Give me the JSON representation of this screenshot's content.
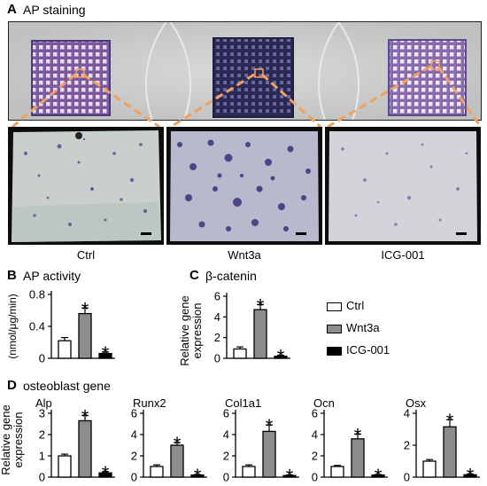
{
  "panels": {
    "A": {
      "letter": "A",
      "title": "AP staining",
      "captions": [
        "Ctrl",
        "Wnt3a",
        "ICG-001"
      ]
    },
    "B": {
      "letter": "B",
      "title": "AP activity",
      "ylabel": "(nmol/μg/min)"
    },
    "C": {
      "letter": "C",
      "title": "β-catenin",
      "ylabel": "Relative gene expression"
    },
    "D": {
      "letter": "D",
      "title": "osteoblast gene",
      "ylabel": "Relative gene expression"
    }
  },
  "legend": {
    "items": [
      {
        "label": "Ctrl",
        "fill": "#ffffff"
      },
      {
        "label": "Wnt3a",
        "fill": "#8c8c8c"
      },
      {
        "label": "ICG-001",
        "fill": "#000000"
      }
    ]
  },
  "colors": {
    "ctrl": "#ffffff",
    "wnt3a": "#8c8c8c",
    "icg": "#000000",
    "connector": "#f0a060",
    "stain": "#4a3a8a"
  },
  "chart_data": [
    {
      "id": "B",
      "type": "bar",
      "categories": [
        "Ctrl",
        "Wnt3a",
        "ICG-001"
      ],
      "values": [
        0.22,
        0.56,
        0.06
      ],
      "errors": [
        0.04,
        0.07,
        0.02
      ],
      "significant": [
        false,
        true,
        true
      ],
      "ylim": [
        0,
        0.8
      ],
      "yticks": [
        "0",
        "0.4",
        "0.8"
      ],
      "ytick_values": [
        0,
        0.4,
        0.8
      ],
      "ylabel": "(nmol/μg/min)",
      "title": "AP activity"
    },
    {
      "id": "C",
      "type": "bar",
      "categories": [
        "Ctrl",
        "Wnt3a",
        "ICG-001"
      ],
      "values": [
        0.9,
        4.7,
        0.2
      ],
      "errors": [
        0.2,
        0.5,
        0.1
      ],
      "significant": [
        false,
        true,
        true
      ],
      "ylim": [
        0,
        6
      ],
      "yticks": [
        "0",
        "2",
        "4",
        "6"
      ],
      "ytick_values": [
        0,
        2,
        4,
        6
      ],
      "ylabel": "Relative gene expression",
      "title": "β-catenin"
    },
    {
      "id": "D-Alp",
      "type": "bar",
      "title": "Alp",
      "categories": [
        "Ctrl",
        "Wnt3a",
        "ICG-001"
      ],
      "values": [
        1.0,
        2.65,
        0.2
      ],
      "errors": [
        0.08,
        0.25,
        0.06
      ],
      "significant": [
        false,
        true,
        true
      ],
      "ylim": [
        0,
        3
      ],
      "yticks": [
        "0",
        "1",
        "2",
        "3"
      ],
      "ytick_values": [
        0,
        1,
        2,
        3
      ]
    },
    {
      "id": "D-Runx2",
      "type": "bar",
      "title": "Runx2",
      "categories": [
        "Ctrl",
        "Wnt3a",
        "ICG-001"
      ],
      "values": [
        1.0,
        3.0,
        0.2
      ],
      "errors": [
        0.15,
        0.25,
        0.05
      ],
      "significant": [
        false,
        true,
        true
      ],
      "ylim": [
        0,
        6
      ],
      "yticks": [
        "0",
        "2",
        "4",
        "6"
      ],
      "ytick_values": [
        0,
        2,
        4,
        6
      ]
    },
    {
      "id": "D-Col1a1",
      "type": "bar",
      "title": "Col1a1",
      "categories": [
        "Ctrl",
        "Wnt3a",
        "ICG-001"
      ],
      "values": [
        1.0,
        4.3,
        0.15
      ],
      "errors": [
        0.15,
        0.6,
        0.05
      ],
      "significant": [
        false,
        true,
        true
      ],
      "ylim": [
        0,
        6
      ],
      "yticks": [
        "0",
        "2",
        "4",
        "6"
      ],
      "ytick_values": [
        0,
        2,
        4,
        6
      ]
    },
    {
      "id": "D-Ocn",
      "type": "bar",
      "title": "Ocn",
      "categories": [
        "Ctrl",
        "Wnt3a",
        "ICG-001"
      ],
      "values": [
        1.0,
        3.6,
        0.2
      ],
      "errors": [
        0.1,
        0.45,
        0.05
      ],
      "significant": [
        false,
        true,
        true
      ],
      "ylim": [
        0,
        6
      ],
      "yticks": [
        "0",
        "2",
        "4",
        "6"
      ],
      "ytick_values": [
        0,
        2,
        4,
        6
      ]
    },
    {
      "id": "D-Osx",
      "type": "bar",
      "title": "Osx",
      "categories": [
        "Ctrl",
        "Wnt3a",
        "ICG-001"
      ],
      "values": [
        1.0,
        3.15,
        0.15
      ],
      "errors": [
        0.1,
        0.45,
        0.05
      ],
      "significant": [
        false,
        true,
        true
      ],
      "ylim": [
        0,
        4
      ],
      "yticks": [
        "0",
        "2",
        "4"
      ],
      "ytick_values": [
        0,
        2,
        4
      ]
    }
  ]
}
